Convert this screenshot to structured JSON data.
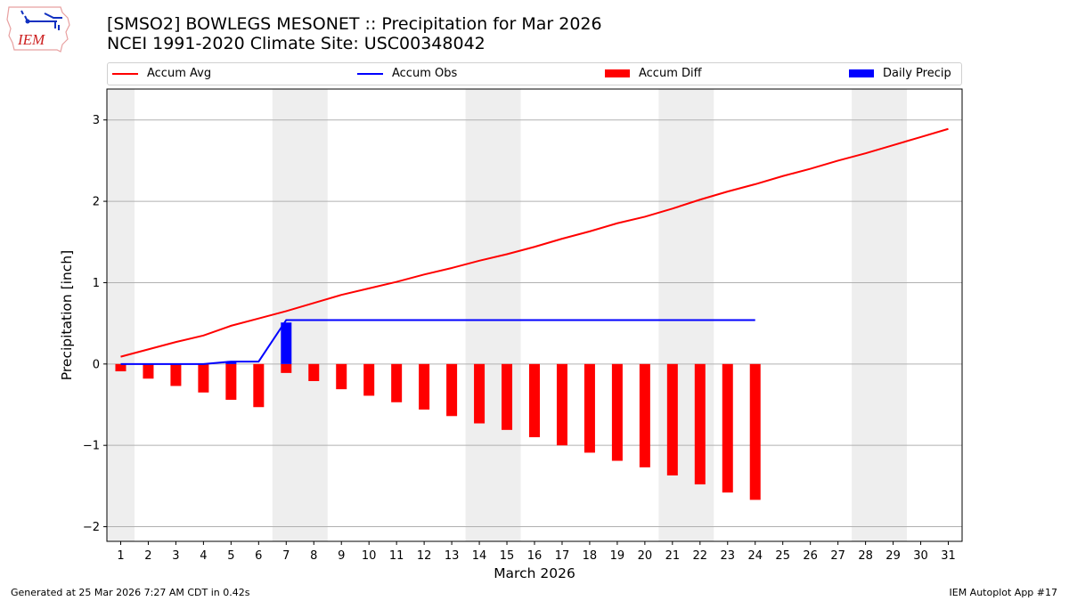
{
  "header": {
    "title_line1": "[SMSO2] BOWLEGS MESONET :: Precipitation for Mar 2026",
    "title_line2": "NCEI 1991-2020 Climate Site: USC00348042",
    "logo_text": "IEM"
  },
  "legend": [
    {
      "label": "Accum Avg",
      "type": "line",
      "color": "#ff0000"
    },
    {
      "label": "Accum Obs",
      "type": "line",
      "color": "#0000ff"
    },
    {
      "label": "Accum Diff",
      "type": "bar",
      "color": "#ff0000"
    },
    {
      "label": "Daily Precip",
      "type": "bar",
      "color": "#0000ff"
    }
  ],
  "footer": {
    "left": "Generated at 25 Mar 2026 7:27 AM CDT in 0.42s",
    "right": "IEM Autoplot App #17"
  },
  "colors": {
    "avg": "#ff0000",
    "obs": "#0000ff",
    "diff": "#ff0000",
    "daily": "#0000ff",
    "weekend_band": "#eeeeee",
    "grid": "#b0b0b0"
  },
  "chart_data": {
    "type": "bar",
    "title": "[SMSO2] BOWLEGS MESONET :: Precipitation for Mar 2026 / NCEI 1991-2020 Climate Site: USC00348042",
    "xlabel": "March 2026",
    "ylabel": "Precipitation [inch]",
    "xlim": [
      0.5,
      31.5
    ],
    "ylim": [
      -2.18,
      3.38
    ],
    "yticks": [
      -2,
      -1,
      0,
      1,
      2,
      3
    ],
    "xticks": [
      1,
      2,
      3,
      4,
      5,
      6,
      7,
      8,
      9,
      10,
      11,
      12,
      13,
      14,
      15,
      16,
      17,
      18,
      19,
      20,
      21,
      22,
      23,
      24,
      25,
      26,
      27,
      28,
      29,
      30,
      31
    ],
    "grid": "y",
    "legend_position": "top (above axes, 4 columns)",
    "weekend_bands": [
      [
        0.5,
        1.5
      ],
      [
        6.5,
        8.5
      ],
      [
        13.5,
        15.5
      ],
      [
        20.5,
        22.5
      ],
      [
        27.5,
        29.5
      ]
    ],
    "series": [
      {
        "name": "Accum Avg",
        "type": "line",
        "x": [
          1,
          2,
          3,
          4,
          5,
          6,
          7,
          8,
          9,
          10,
          11,
          12,
          13,
          14,
          15,
          16,
          17,
          18,
          19,
          20,
          21,
          22,
          23,
          24,
          25,
          26,
          27,
          28,
          29,
          30,
          31
        ],
        "values": [
          0.09,
          0.18,
          0.27,
          0.35,
          0.47,
          0.56,
          0.65,
          0.75,
          0.85,
          0.93,
          1.01,
          1.1,
          1.18,
          1.27,
          1.35,
          1.44,
          1.54,
          1.63,
          1.73,
          1.81,
          1.91,
          2.02,
          2.12,
          2.21,
          2.31,
          2.4,
          2.5,
          2.59,
          2.69,
          2.79,
          2.89
        ]
      },
      {
        "name": "Accum Obs",
        "type": "line",
        "x": [
          1,
          2,
          3,
          4,
          5,
          6,
          7,
          8,
          9,
          10,
          11,
          12,
          13,
          14,
          15,
          16,
          17,
          18,
          19,
          20,
          21,
          22,
          23,
          24
        ],
        "values": [
          0.0,
          0.0,
          0.0,
          0.0,
          0.03,
          0.03,
          0.54,
          0.54,
          0.54,
          0.54,
          0.54,
          0.54,
          0.54,
          0.54,
          0.54,
          0.54,
          0.54,
          0.54,
          0.54,
          0.54,
          0.54,
          0.54,
          0.54,
          0.54
        ]
      },
      {
        "name": "Accum Diff",
        "type": "bar",
        "x": [
          1,
          2,
          3,
          4,
          5,
          6,
          7,
          8,
          9,
          10,
          11,
          12,
          13,
          14,
          15,
          16,
          17,
          18,
          19,
          20,
          21,
          22,
          23,
          24
        ],
        "values": [
          -0.09,
          -0.18,
          -0.27,
          -0.35,
          -0.44,
          -0.53,
          -0.11,
          -0.21,
          -0.31,
          -0.39,
          -0.47,
          -0.56,
          -0.64,
          -0.73,
          -0.81,
          -0.9,
          -1.0,
          -1.09,
          -1.19,
          -1.27,
          -1.37,
          -1.48,
          -1.58,
          -1.67
        ]
      },
      {
        "name": "Daily Precip",
        "type": "bar",
        "x": [
          1,
          2,
          3,
          4,
          5,
          6,
          7,
          8,
          9,
          10,
          11,
          12,
          13,
          14,
          15,
          16,
          17,
          18,
          19,
          20,
          21,
          22,
          23,
          24
        ],
        "values": [
          0,
          0,
          0,
          0,
          0.03,
          0,
          0.51,
          0,
          0,
          0,
          0,
          0,
          0,
          0,
          0,
          0,
          0,
          0,
          0,
          0,
          0,
          0,
          0,
          0
        ]
      }
    ]
  }
}
